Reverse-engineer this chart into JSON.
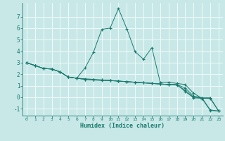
{
  "xlabel": "Humidex (Indice chaleur)",
  "bg_color": "#c8e8e8",
  "grid_color": "#ffffff",
  "line_color": "#1a7a6e",
  "xlim": [
    -0.5,
    23.5
  ],
  "ylim": [
    -1.6,
    8.2
  ],
  "yticks": [
    -1,
    0,
    1,
    2,
    3,
    4,
    5,
    6,
    7
  ],
  "xticks": [
    0,
    1,
    2,
    3,
    4,
    5,
    6,
    7,
    8,
    9,
    10,
    11,
    12,
    13,
    14,
    15,
    16,
    17,
    18,
    19,
    20,
    21,
    22,
    23
  ],
  "line1_x": [
    0,
    1,
    2,
    3,
    4,
    5,
    6,
    7,
    8,
    9,
    10,
    11,
    12,
    13,
    14,
    15,
    16,
    17,
    18,
    19,
    20,
    21,
    22,
    23
  ],
  "line1_y": [
    3.0,
    2.75,
    2.5,
    2.45,
    2.2,
    1.75,
    1.65,
    1.55,
    1.5,
    1.5,
    1.45,
    1.4,
    1.35,
    1.3,
    1.25,
    1.2,
    1.15,
    1.1,
    1.1,
    0.5,
    -0.05,
    -0.1,
    -1.15,
    -1.2
  ],
  "line2_x": [
    0,
    1,
    2,
    3,
    4,
    5,
    6,
    7,
    8,
    9,
    10,
    11,
    12,
    13,
    14,
    15,
    16,
    17,
    18,
    19,
    20,
    21,
    22,
    23
  ],
  "line2_y": [
    3.0,
    2.75,
    2.5,
    2.45,
    2.2,
    1.75,
    1.65,
    2.55,
    3.9,
    5.9,
    6.0,
    7.7,
    5.95,
    3.95,
    3.3,
    4.3,
    1.3,
    1.3,
    1.2,
    1.1,
    0.35,
    -0.1,
    -0.1,
    -1.2
  ],
  "line3_x": [
    0,
    1,
    2,
    3,
    4,
    5,
    6,
    7,
    8,
    9,
    10,
    11,
    12,
    13,
    14,
    15,
    16,
    17,
    18,
    19,
    20,
    21,
    22,
    23
  ],
  "line3_y": [
    3.0,
    2.75,
    2.5,
    2.45,
    2.2,
    1.75,
    1.65,
    1.55,
    1.5,
    1.45,
    1.45,
    1.4,
    1.35,
    1.3,
    1.25,
    1.2,
    1.15,
    1.1,
    1.05,
    0.6,
    0.0,
    -0.05,
    -1.1,
    -1.2
  ],
  "line4_x": [
    0,
    1,
    2,
    3,
    4,
    5,
    6,
    7,
    8,
    9,
    10,
    11,
    12,
    13,
    14,
    15,
    16,
    17,
    18,
    19,
    20,
    21,
    22,
    23
  ],
  "line4_y": [
    3.0,
    2.75,
    2.5,
    2.45,
    2.2,
    1.75,
    1.65,
    1.6,
    1.55,
    1.5,
    1.45,
    1.4,
    1.35,
    1.3,
    1.25,
    1.2,
    1.15,
    1.1,
    1.1,
    0.8,
    0.1,
    -0.05,
    -0.05,
    -1.2
  ]
}
